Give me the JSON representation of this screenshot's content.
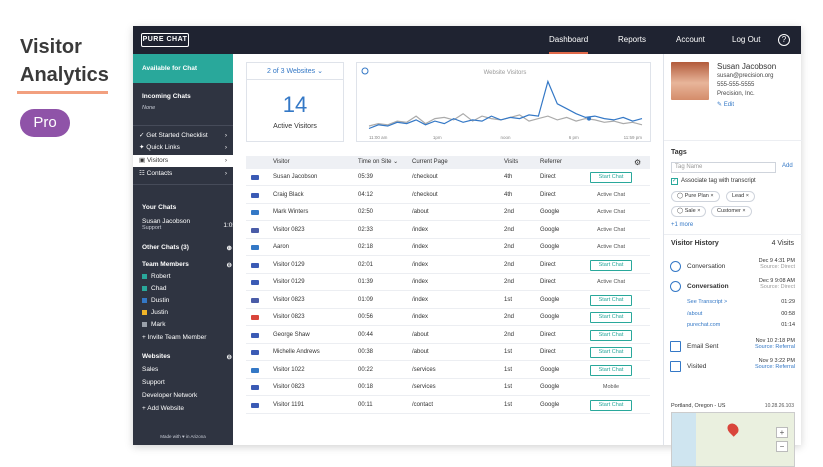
{
  "promo": {
    "heading_line1": "Visitor",
    "heading_line2": "Analytics",
    "badge": "Pro"
  },
  "topbar": {
    "logo": "PURE CHAT",
    "nav": [
      "Dashboard",
      "Reports",
      "Account",
      "Log Out"
    ],
    "help": "?"
  },
  "sidebar": {
    "status": "Available for Chat",
    "incoming_title": "Incoming Chats",
    "incoming_none": "None",
    "menu": [
      {
        "label": "Get Started Checklist",
        "icon": "check-icon"
      },
      {
        "label": "Quick Links",
        "icon": "bolt-icon"
      },
      {
        "label": "Visitors",
        "icon": "visitors-icon"
      },
      {
        "label": "Contacts",
        "icon": "contacts-icon"
      }
    ],
    "your_chats_title": "Your Chats",
    "your_chat": {
      "name": "Susan Jacobson",
      "team": "Support",
      "time": "1:05"
    },
    "other_chats": "Other Chats (3)",
    "team_title": "Team Members",
    "team": [
      {
        "name": "Robert",
        "color": "#29a89b"
      },
      {
        "name": "Chad",
        "color": "#29a89b"
      },
      {
        "name": "Dustin",
        "color": "#3478c6"
      },
      {
        "name": "Justin",
        "color": "#f0b429"
      },
      {
        "name": "Mark",
        "color": "#9aa0aa"
      }
    ],
    "invite": "+ Invite Team Member",
    "websites_title": "Websites",
    "websites": [
      "Sales",
      "Support",
      "Developer Network"
    ],
    "add_website": "+ Add Website",
    "made_with": "Made with ♥ in Arizona"
  },
  "summary": {
    "site_selector": "2 of 3 Websites",
    "active_count": "14",
    "active_label": "Active Visitors"
  },
  "chart_data": {
    "type": "line",
    "title": "Website Visitors",
    "x_ticks": [
      "11:00 am",
      "1pm",
      "noon",
      "6 pm",
      "11:59 pm"
    ],
    "series": [
      {
        "color": "#3478c6",
        "values": [
          2,
          5,
          4,
          7,
          6,
          9,
          5,
          8,
          6,
          10,
          7,
          9,
          8,
          12,
          9,
          11,
          10,
          13,
          12,
          40,
          22,
          18,
          14,
          11,
          12,
          10,
          9,
          11,
          8,
          10
        ]
      },
      {
        "color": "#aaaaaa",
        "values": [
          4,
          6,
          5,
          8,
          7,
          12,
          6,
          10,
          11,
          9,
          14,
          8,
          12,
          10,
          9,
          11,
          13,
          8,
          10,
          12,
          9,
          11,
          8,
          10,
          9,
          7,
          8,
          6,
          7,
          5
        ]
      }
    ]
  },
  "table": {
    "headers": [
      "Visitor",
      "Time on Site",
      "Current Page",
      "Visits",
      "Referrer"
    ],
    "start_chat": "Start Chat",
    "rows": [
      {
        "visitor": "Susan Jacobson",
        "time": "05:39",
        "page": "/checkout",
        "visits": "4th",
        "ref": "Direct",
        "action": "Start Chat",
        "btn": true,
        "flag": "#3b5bb5"
      },
      {
        "visitor": "Craig Black",
        "time": "04:12",
        "page": "/checkout",
        "visits": "4th",
        "ref": "Direct",
        "action": "Active Chat",
        "btn": false,
        "flag": "#3b5bb5"
      },
      {
        "visitor": "Mark Winters",
        "time": "02:50",
        "page": "/about",
        "visits": "2nd",
        "ref": "Google",
        "action": "Active Chat",
        "btn": false,
        "flag": "#3478c6"
      },
      {
        "visitor": "Visitor 0823",
        "time": "02:33",
        "page": "/index",
        "visits": "2nd",
        "ref": "Google",
        "action": "Active Chat",
        "btn": false,
        "flag": "#4a5ca8"
      },
      {
        "visitor": "Aaron",
        "time": "02:18",
        "page": "/index",
        "visits": "2nd",
        "ref": "Google",
        "action": "Active Chat",
        "btn": false,
        "flag": "#3478c6"
      },
      {
        "visitor": "Visitor 0129",
        "time": "02:01",
        "page": "/index",
        "visits": "2nd",
        "ref": "Direct",
        "action": "Start Chat",
        "btn": true,
        "flag": "#3b5bb5"
      },
      {
        "visitor": "Visitor 0129",
        "time": "01:39",
        "page": "/index",
        "visits": "2nd",
        "ref": "Direct",
        "action": "Active Chat",
        "btn": false,
        "flag": "#3b5bb5"
      },
      {
        "visitor": "Visitor 0823",
        "time": "01:09",
        "page": "/index",
        "visits": "1st",
        "ref": "Google",
        "action": "Start Chat",
        "btn": true,
        "flag": "#4a5ca8"
      },
      {
        "visitor": "Visitor 0823",
        "time": "00:56",
        "page": "/index",
        "visits": "2nd",
        "ref": "Google",
        "action": "Start Chat",
        "btn": true,
        "flag": "#d9453b"
      },
      {
        "visitor": "George Shaw",
        "time": "00:44",
        "page": "/about",
        "visits": "2nd",
        "ref": "Direct",
        "action": "Start Chat",
        "btn": true,
        "flag": "#3b5bb5"
      },
      {
        "visitor": "Michelle Andrews",
        "time": "00:38",
        "page": "/about",
        "visits": "1st",
        "ref": "Direct",
        "action": "Start Chat",
        "btn": true,
        "flag": "#3b5bb5"
      },
      {
        "visitor": "Visitor 1022",
        "time": "00:22",
        "page": "/services",
        "visits": "1st",
        "ref": "Google",
        "action": "Start Chat",
        "btn": true,
        "flag": "#3478c6"
      },
      {
        "visitor": "Visitor 0823",
        "time": "00:18",
        "page": "/services",
        "visits": "1st",
        "ref": "Google",
        "action": "Mobile",
        "btn": false,
        "flag": "#3b5bb5"
      },
      {
        "visitor": "Visitor 1191",
        "time": "00:11",
        "page": "/contact",
        "visits": "1st",
        "ref": "Google",
        "action": "Start Chat",
        "btn": true,
        "flag": "#3b5bb5"
      }
    ]
  },
  "contact": {
    "name": "Susan Jacobson",
    "email": "susan@precision.org",
    "phone": "555-555-5555",
    "company": "Precision, Inc.",
    "edit": "✎ Edit"
  },
  "tags": {
    "title": "Tags",
    "placeholder": "Tag Name",
    "add": "Add",
    "associate": "Associate tag with transcript",
    "list": [
      "Pure Plan",
      "Lead",
      "Sale",
      "Customer"
    ],
    "more": "+1 more"
  },
  "history": {
    "title": "Visitor History",
    "count": "4 Visits",
    "items": [
      {
        "label": "Conversation",
        "date": "Dec 9 4:31 PM",
        "source": "Source: Direct"
      },
      {
        "label": "Conversation",
        "date": "Dec 9 9:08 AM",
        "source": "Source: Direct"
      },
      {
        "label": "Email Sent",
        "date": "Nov 10 2:18 PM",
        "source": "Source: Referral"
      },
      {
        "label": "Visited",
        "date": "Nov 9 3:22 PM",
        "source": "Source: Referral"
      }
    ],
    "sub": [
      {
        "label": "See Transcript >",
        "val": "01:29"
      },
      {
        "label": "/about",
        "val": "00:58"
      },
      {
        "label": "purechat.com",
        "val": "01:14"
      }
    ]
  },
  "map": {
    "location": "Portland, Oregon - US",
    "ip": "10.28.26.103",
    "zoom_in": "+",
    "zoom_out": "−"
  }
}
